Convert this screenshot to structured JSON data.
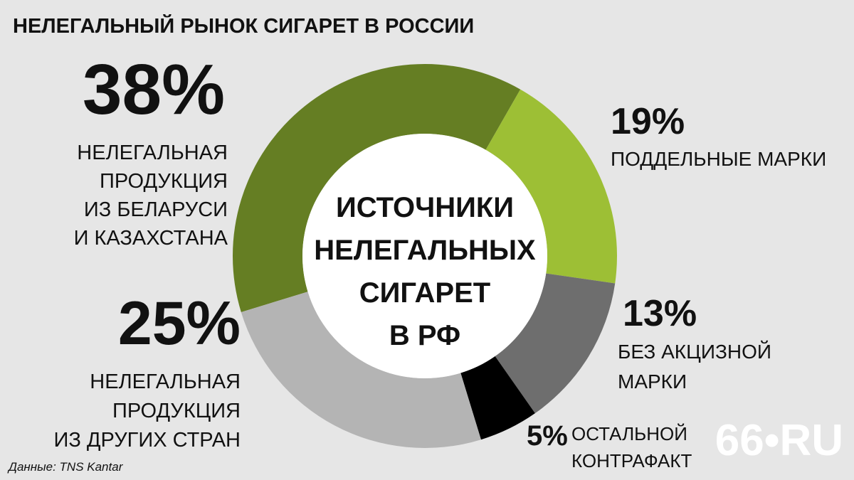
{
  "chart_data": {
    "type": "pie",
    "title": "НЕЛЕГАЛЬНЫЙ РЫНОК СИГАРЕТ В РОССИИ",
    "center_text": [
      "ИСТОЧНИКИ",
      "НЕЛЕГАЛЬНЫХ",
      "СИГАРЕТ",
      "В РФ"
    ],
    "categories": [
      [
        "НЕЛЕГАЛЬНАЯ",
        "ПРОДУКЦИЯ",
        "ИЗ БЕЛАРУСИ",
        "И КАЗАХСТАНА"
      ],
      [
        "ПОДДЕЛЬНЫЕ МАРКИ"
      ],
      [
        "БЕЗ АКЦИЗНОЙ",
        "МАРКИ"
      ],
      [
        "ОСТАЛЬНОЙ",
        "КОНТРАФАКТ"
      ],
      [
        "НЕЛЕГАЛЬНАЯ",
        "ПРОДУКЦИЯ",
        "ИЗ ДРУГИХ СТРАН"
      ]
    ],
    "values": [
      38,
      19,
      13,
      5,
      25
    ],
    "value_labels": [
      "38%",
      "19%",
      "13%",
      "5%",
      "25%"
    ],
    "colors": [
      "#657e23",
      "#9dbf35",
      "#6e6e6e",
      "#000000",
      "#b4b4b4"
    ],
    "source": "Данные: TNS Kantar",
    "logo": "66•RU"
  }
}
